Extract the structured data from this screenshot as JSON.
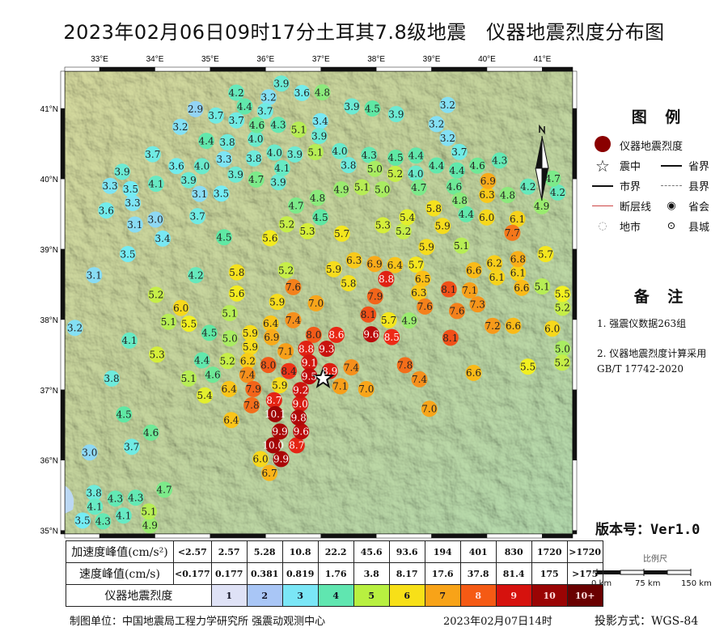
{
  "title": "2023年02月06日09时17分土耳其7.8级地震   仪器地震烈度分布图",
  "map": {
    "lon_ticks": [
      "33°E",
      "34°E",
      "35°E",
      "36°E",
      "37°E",
      "38°E",
      "39°E",
      "40°E",
      "41°E"
    ],
    "lat_ticks": [
      "41°N",
      "40°N",
      "39°N",
      "38°N",
      "37°N",
      "36°N",
      "35°N"
    ],
    "extent": {
      "lon": [
        32.37,
        41.55
      ],
      "lat": [
        34.95,
        41.53
      ]
    },
    "epicenter": {
      "lon": 37.04,
      "lat": 37.16
    },
    "north_arrow": "north-arrow-icon",
    "intensity_colors": {
      "1": "#e6e8f8",
      "2": "#a8c4f4",
      "3": "#74ecf4",
      "4": "#5fe8a4",
      "5": "#f2f020",
      "6": "#fbbf18",
      "7": "#f58a1c",
      "8": "#ee2a16",
      "9": "#c00c0c",
      "10": "#8a0000",
      "11": "#600000"
    },
    "stations": [
      [
        36.3,
        41.35,
        3.9
      ],
      [
        36.71,
        41.22,
        3.6
      ],
      [
        36.96,
        41.23,
        4.8
      ],
      [
        35.47,
        41.16,
        4.2
      ],
      [
        36.04,
        41.1,
        3.2
      ],
      [
        34.8,
        40.99,
        2.9
      ],
      [
        35.2,
        40.9,
        3.7
      ],
      [
        35.45,
        40.9,
        3.7
      ],
      [
        35.7,
        40.99,
        4.4
      ],
      [
        35.93,
        40.92,
        3.7
      ],
      [
        35.7,
        40.82,
        4.6
      ],
      [
        34.46,
        40.74,
        3.2
      ],
      [
        35.82,
        40.65,
        4.0
      ],
      [
        36.3,
        40.77,
        4.3
      ],
      [
        36.56,
        40.7,
        5.1
      ],
      [
        36.94,
        40.61,
        3.9
      ],
      [
        36.99,
        40.82,
        3.4
      ],
      [
        34.93,
        40.54,
        4.4
      ],
      [
        35.31,
        40.52,
        3.8
      ],
      [
        33.96,
        40.35,
        3.7
      ],
      [
        35.25,
        40.28,
        3.3
      ],
      [
        35.86,
        40.29,
        3.8
      ],
      [
        36.09,
        40.38,
        4.0
      ],
      [
        36.55,
        40.33,
        3.9
      ],
      [
        36.88,
        40.38,
        5.1
      ],
      [
        33.41,
        40.1,
        3.9
      ],
      [
        34.39,
        40.15,
        3.6
      ],
      [
        34.85,
        40.17,
        4.0
      ],
      [
        34.61,
        40.01,
        3.9
      ],
      [
        35.5,
        40.06,
        3.9
      ],
      [
        35.79,
        39.99,
        4.7
      ],
      [
        36.3,
        40.11,
        4.1
      ],
      [
        36.23,
        40.01,
        3.9
      ],
      [
        33.22,
        39.9,
        3.3
      ],
      [
        33.53,
        39.85,
        3.5
      ],
      [
        34.02,
        39.93,
        4.1
      ],
      [
        34.81,
        39.8,
        3.1
      ],
      [
        35.2,
        39.79,
        3.5
      ],
      [
        33.6,
        39.66,
        3.3
      ],
      [
        33.12,
        39.55,
        3.6
      ],
      [
        36.55,
        39.62,
        4.7
      ],
      [
        36.94,
        39.73,
        4.8
      ],
      [
        33.7,
        39.35,
        3.1
      ],
      [
        33.95,
        39.42,
        3.0
      ],
      [
        34.77,
        39.47,
        3.7
      ],
      [
        36.4,
        39.35,
        5.2
      ],
      [
        36.74,
        39.26,
        5.3
      ],
      [
        36.99,
        39.45,
        4.5
      ],
      [
        34.14,
        39.15,
        3.4
      ],
      [
        35.25,
        39.17,
        4.5
      ],
      [
        36.08,
        39.16,
        5.6
      ],
      [
        33.51,
        38.93,
        3.5
      ],
      [
        32.9,
        38.63,
        3.1
      ],
      [
        34.74,
        38.63,
        4.2
      ],
      [
        35.48,
        38.67,
        5.8
      ],
      [
        36.37,
        38.7,
        5.2
      ],
      [
        34.02,
        38.35,
        5.2
      ],
      [
        35.48,
        38.37,
        5.6
      ],
      [
        36.5,
        38.46,
        7.6
      ],
      [
        36.21,
        38.25,
        5.9
      ],
      [
        36.91,
        38.23,
        7.0
      ],
      [
        37.57,
        41.03,
        3.9
      ],
      [
        37.92,
        41.0,
        4.5
      ],
      [
        38.36,
        40.92,
        3.9
      ],
      [
        39.29,
        41.05,
        3.2
      ],
      [
        39.09,
        40.71,
        3.2
      ],
      [
        39.29,
        40.58,
        3.2
      ],
      [
        39.5,
        40.44,
        3.7
      ],
      [
        37.34,
        40.39,
        4.0
      ],
      [
        37.54,
        40.2,
        3.8
      ],
      [
        37.83,
        40.3,
        4.3
      ],
      [
        38.09,
        40.18,
        5.0
      ],
      [
        38.34,
        40.07,
        5.2
      ],
      [
        38.62,
        40.06,
        4.0
      ],
      [
        38.42,
        40.3,
        4.5
      ],
      [
        38.77,
        40.33,
        4.4
      ],
      [
        39.13,
        40.19,
        4.4
      ],
      [
        39.44,
        40.12,
        4.4
      ],
      [
        39.67,
        40.2,
        4.6
      ],
      [
        40.23,
        40.26,
        4.3
      ],
      [
        37.39,
        39.85,
        4.9
      ],
      [
        37.74,
        39.88,
        5.1
      ],
      [
        38.09,
        39.85,
        5.0
      ],
      [
        38.77,
        39.89,
        4.7
      ],
      [
        39.41,
        39.79,
        4.6
      ],
      [
        39.51,
        39.73,
        4.8
      ],
      [
        40.02,
        39.96,
        6.9
      ],
      [
        40.04,
        39.78,
        6.3
      ],
      [
        40.4,
        39.77,
        4.8
      ],
      [
        40.68,
        39.89,
        4.2
      ],
      [
        41.19,
        39.94,
        4.7
      ],
      [
        41.28,
        39.87,
        4.2
      ],
      [
        40.99,
        39.61,
        4.9
      ],
      [
        39.04,
        39.58,
        5.8
      ],
      [
        39.7,
        39.56,
        4.4
      ],
      [
        39.92,
        39.45,
        6.0
      ],
      [
        40.55,
        39.42,
        6.1
      ],
      [
        37.38,
        39.22,
        5.7
      ],
      [
        38.12,
        39.34,
        5.3
      ],
      [
        38.56,
        39.45,
        5.4
      ],
      [
        38.49,
        39.26,
        5.2
      ],
      [
        39.2,
        39.33,
        5.9
      ],
      [
        40.46,
        39.24,
        7.7
      ],
      [
        38.91,
        39.03,
        5.9
      ],
      [
        39.54,
        39.05,
        5.1
      ],
      [
        41.06,
        38.93,
        5.7
      ],
      [
        37.69,
        38.84,
        6.3
      ],
      [
        37.93,
        38.79,
        6.9
      ],
      [
        38.27,
        38.77,
        6.4
      ],
      [
        38.72,
        38.78,
        5.7
      ],
      [
        39.88,
        38.7,
        6.6
      ],
      [
        40.02,
        38.7,
        6.2
      ],
      [
        40.18,
        38.7,
        6.1
      ],
      [
        40.56,
        38.82,
        6.8
      ],
      [
        40.56,
        38.7,
        6.1
      ],
      [
        37.25,
        38.7,
        5.9
      ],
      [
        37.5,
        38.53,
        5.8
      ],
      [
        38.18,
        38.58,
        8.8
      ],
      [
        38.84,
        38.57,
        6.5
      ],
      [
        39.31,
        38.43,
        8.1
      ],
      [
        39.69,
        38.38,
        7.1
      ],
      [
        40.66,
        38.45,
        6.6
      ],
      [
        41.01,
        38.47,
        5.1
      ],
      [
        41.39,
        38.36,
        5.5
      ],
      [
        38.77,
        38.39,
        6.3
      ],
      [
        37.98,
        38.33,
        7.9
      ],
      [
        38.88,
        38.18,
        7.6
      ],
      [
        39.79,
        38.25,
        7.3
      ],
      [
        39.5,
        38.12,
        7.6
      ],
      [
        37.89,
        38.07,
        8.1
      ],
      [
        38.23,
        37.99,
        5.7
      ],
      [
        38.56,
        37.99,
        4.9
      ],
      [
        37.28,
        37.74,
        8.6
      ],
      [
        37.92,
        37.79,
        9.6
      ],
      [
        38.27,
        37.75,
        8.5
      ],
      [
        39.34,
        37.74,
        8.1
      ],
      [
        40.21,
        37.91,
        7.2
      ],
      [
        40.37,
        37.91,
        6.6
      ],
      [
        41.18,
        37.87,
        6.0
      ],
      [
        41.44,
        38.17,
        5.2
      ],
      [
        37.55,
        37.32,
        7.4
      ],
      [
        38.52,
        37.35,
        7.8
      ],
      [
        38.78,
        37.15,
        7.4
      ],
      [
        39.76,
        37.24,
        6.6
      ],
      [
        40.74,
        37.33,
        5.5
      ],
      [
        41.39,
        37.56,
        5.0
      ],
      [
        41.36,
        37.41,
        5.2
      ],
      [
        37.35,
        37.05,
        7.1
      ],
      [
        37.82,
        37.01,
        7.0
      ],
      [
        38.96,
        36.73,
        7.0
      ],
      [
        34.47,
        38.15,
        6.0
      ],
      [
        34.36,
        37.98,
        5.1
      ],
      [
        34.66,
        37.94,
        5.5
      ],
      [
        35.35,
        38.09,
        5.1
      ],
      [
        36.5,
        37.99,
        7.4
      ],
      [
        32.5,
        37.88,
        3.2
      ],
      [
        33.54,
        37.7,
        4.1
      ],
      [
        34.99,
        37.81,
        4.5
      ],
      [
        35.42,
        37.73,
        5.0
      ],
      [
        35.6,
        37.67,
        5.9
      ],
      [
        35.79,
        37.73,
        5.9
      ],
      [
        35.92,
        37.82,
        6.4
      ],
      [
        36.11,
        37.82,
        6.9
      ],
      [
        34.04,
        37.5,
        5.3
      ],
      [
        34.85,
        37.4,
        4.4
      ],
      [
        35.41,
        37.39,
        5.2
      ],
      [
        35.77,
        37.41,
        6.2
      ],
      [
        36.08,
        37.39,
        8.0
      ],
      [
        36.37,
        37.56,
        7.1
      ],
      [
        36.87,
        37.58,
        8.0
      ],
      [
        33.22,
        37.16,
        3.8
      ],
      [
        34.61,
        37.16,
        5.1
      ],
      [
        35.06,
        37.24,
        4.6
      ],
      [
        35.67,
        37.24,
        7.4
      ],
      [
        35.34,
        37.01,
        6.4
      ],
      [
        35.79,
        37.01,
        7.9
      ],
      [
        36.33,
        37.07,
        5.9
      ],
      [
        36.58,
        37.19,
        8.4
      ],
      [
        34.9,
        36.92,
        5.4
      ],
      [
        35.79,
        36.78,
        7.8
      ],
      [
        36.23,
        36.84,
        8.7
      ],
      [
        33.44,
        36.65,
        4.5
      ],
      [
        35.38,
        36.57,
        6.4
      ],
      [
        33.93,
        36.39,
        4.6
      ],
      [
        33.58,
        36.19,
        3.7
      ],
      [
        32.82,
        36.11,
        3.0
      ],
      [
        36.15,
        36.25,
        10.0
      ],
      [
        36.26,
        36.13,
        9.9
      ],
      [
        36.55,
        36.25,
        8.7
      ],
      [
        35.93,
        36.1,
        6.0
      ],
      [
        36.07,
        35.93,
        6.7
      ],
      [
        34.17,
        35.58,
        4.7
      ],
      [
        32.94,
        35.45,
        3.8
      ],
      [
        33.29,
        35.39,
        4.3
      ],
      [
        33.55,
        35.39,
        4.3
      ],
      [
        33.38,
        35.27,
        4.1
      ],
      [
        32.97,
        35.31,
        4.1
      ],
      [
        33.0,
        35.22,
        4.3
      ],
      [
        32.81,
        35.19,
        3.5
      ],
      [
        33.89,
        35.24,
        5.1
      ],
      [
        33.91,
        35.16,
        4.9
      ],
      [
        36.77,
        37.5,
        8.8
      ],
      [
        37.06,
        37.45,
        9.3
      ],
      [
        36.91,
        37.33,
        8.9
      ],
      [
        36.69,
        37.25,
        9.1
      ],
      [
        36.74,
        37.07,
        9.5
      ],
      [
        36.55,
        36.93,
        9.2
      ],
      [
        36.45,
        36.76,
        9.8
      ],
      [
        36.36,
        36.61,
        10.1
      ],
      [
        36.5,
        36.57,
        9.6
      ],
      [
        36.26,
        36.47,
        9.9
      ],
      [
        36.62,
        36.88,
        9.0
      ]
    ]
  },
  "legend": {
    "title": "图 例",
    "items": {
      "intensity": "仪器地震烈度",
      "epicenter": "震中",
      "province_border": "省界",
      "city_border": "市界",
      "county_border": "县界",
      "fault": "断层线",
      "provincial_capital": "省会",
      "city": "地市",
      "county_town": "县城"
    }
  },
  "notes": {
    "title": "备 注",
    "items": [
      "1. 强震仪数据263组",
      "2. 仪器地震烈度计算采用GB/T 17742-2020"
    ]
  },
  "version": "版本号：Ver1.0",
  "scale_bar": {
    "title": "比例尺",
    "labels": [
      "0 km",
      "75 km",
      "150 km"
    ]
  },
  "projection": "投影方式：WGS-84",
  "table": {
    "pga_label": "加速度峰值(cm/s²)",
    "pga": [
      "<2.57",
      "2.57",
      "5.28",
      "10.8",
      "22.2",
      "45.6",
      "93.6",
      "194",
      "401",
      "830",
      "1720",
      ">1720"
    ],
    "pgv_label": "速度峰值(cm/s)",
    "pgv": [
      "<0.177",
      "0.177",
      "0.381",
      "0.819",
      "1.76",
      "3.8",
      "8.17",
      "17.6",
      "37.8",
      "81.4",
      "175",
      ">175"
    ],
    "intensity_label": "仪器地震烈度",
    "intensity": [
      "1",
      "2",
      "3",
      "4",
      "5",
      "6",
      "7",
      "8",
      "9",
      "10",
      "10+"
    ],
    "intensity_colors": [
      "#dfe2f6",
      "#a9c6f6",
      "#7ae6f6",
      "#60e6b0",
      "#b8f040",
      "#f7e018",
      "#f8a318",
      "#f55a14",
      "#d6120e",
      "#9a0404",
      "#6a0000"
    ]
  },
  "footer": {
    "maker": "制图单位：中国地震局工程力学研究所 强震动观测中心",
    "date": "2023年02月07日14时"
  }
}
